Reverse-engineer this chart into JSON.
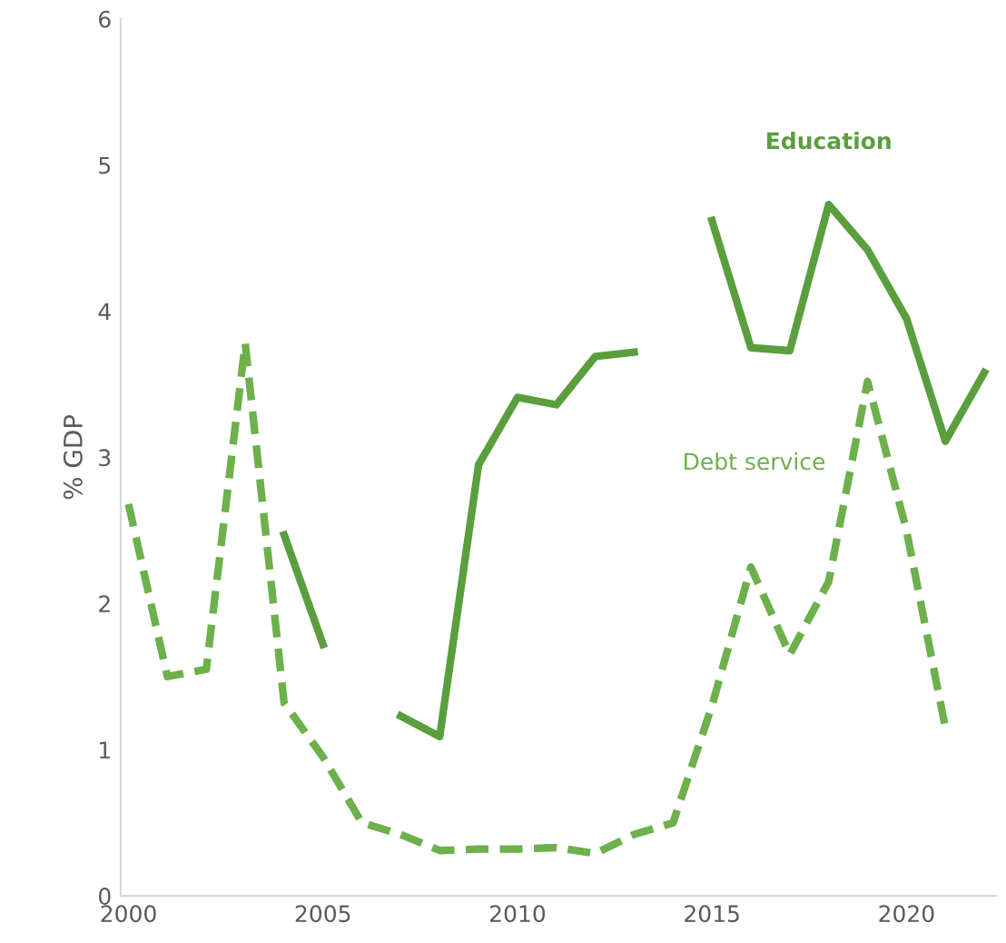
{
  "chart_data": {
    "type": "line",
    "ylabel": "% GDP",
    "x": [
      2000,
      2001,
      2002,
      2003,
      2004,
      2005,
      2006,
      2007,
      2008,
      2009,
      2010,
      2011,
      2012,
      2013,
      2014,
      2015,
      2016,
      2017,
      2018,
      2019,
      2020,
      2021,
      2022
    ],
    "series": [
      {
        "name": "Education",
        "color": "#5a9e3e",
        "line_style": "solid",
        "values": [
          null,
          null,
          null,
          null,
          2.47,
          1.72,
          null,
          1.23,
          1.09,
          2.95,
          3.41,
          3.36,
          3.69,
          3.72,
          null,
          4.62,
          3.75,
          3.73,
          4.73,
          4.42,
          3.95,
          3.11,
          3.58
        ]
      },
      {
        "name": "Debt service",
        "color": "#6db04c",
        "line_style": "dashed",
        "values": [
          2.68,
          1.5,
          1.55,
          3.78,
          1.32,
          0.95,
          0.5,
          0.42,
          0.31,
          0.32,
          0.32,
          0.33,
          0.29,
          0.42,
          0.5,
          1.3,
          2.25,
          1.65,
          2.15,
          3.52,
          2.5,
          1.15,
          null
        ]
      }
    ],
    "xlim": [
      1999.8,
      2022.3
    ],
    "xticks": [
      2000,
      2005,
      2010,
      2015,
      2020
    ],
    "ylim": [
      0,
      6
    ],
    "yticks": [
      0,
      1,
      2,
      3,
      4,
      5,
      6
    ],
    "grid": false,
    "legend": false
  }
}
